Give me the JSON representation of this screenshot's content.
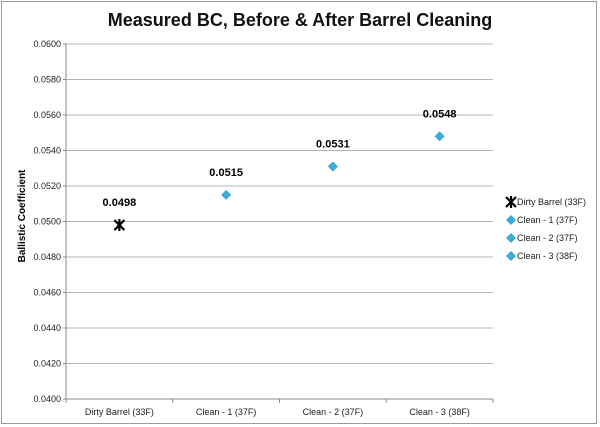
{
  "chart_data": {
    "type": "scatter",
    "title": "Measured BC, Before & After Barrel Cleaning",
    "xlabel": "",
    "ylabel": "Ballistic Coefficient",
    "ylim": [
      0.04,
      0.06
    ],
    "yticks": [
      "0.0400",
      "0.0420",
      "0.0440",
      "0.0460",
      "0.0480",
      "0.0500",
      "0.0520",
      "0.0540",
      "0.0560",
      "0.0580",
      "0.0600"
    ],
    "categories": [
      "Dirty Barrel (33F)",
      "Clean - 1 (37F)",
      "Clean - 2 (37F)",
      "Clean - 3 (38F)"
    ],
    "grid": "horizontal",
    "legend_position": "right",
    "series": [
      {
        "name": "Dirty Barrel (33F)",
        "marker": "asterisk",
        "color": "#000000",
        "points": [
          {
            "x": "Dirty Barrel (33F)",
            "y": 0.0498,
            "label": "0.0498"
          }
        ]
      },
      {
        "name": "Clean - 1 (37F)",
        "marker": "diamond",
        "color": "#3ab0d8",
        "points": [
          {
            "x": "Clean - 1 (37F)",
            "y": 0.0515,
            "label": "0.0515"
          }
        ]
      },
      {
        "name": "Clean - 2 (37F)",
        "marker": "diamond",
        "color": "#3ab0d8",
        "points": [
          {
            "x": "Clean - 2 (37F)",
            "y": 0.0531,
            "label": "0.0531"
          }
        ]
      },
      {
        "name": "Clean - 3 (38F)",
        "marker": "diamond",
        "color": "#3ab0d8",
        "points": [
          {
            "x": "Clean - 3 (38F)",
            "y": 0.0548,
            "label": "0.0548"
          }
        ]
      }
    ]
  }
}
